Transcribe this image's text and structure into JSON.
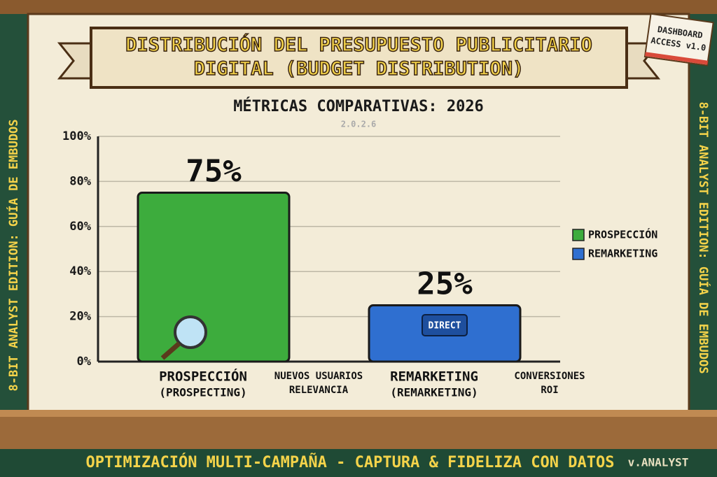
{
  "chart_data": {
    "type": "bar",
    "title": "DISTRIBUCIÓN DEL PRESUPUESTO PUBLICITARIO DIGITAL (BUDGET DISTRIBUTION)",
    "subtitle": "MÉTRICAS COMPARATIVAS: 2026",
    "categories": [
      "PROSPECCIÓN",
      "REMARKETING"
    ],
    "category_subtitles": [
      "(PROSPECTING)",
      "(REMARKETING)"
    ],
    "annotations": [
      [
        "NUEVOS USUARIOS",
        "RELEVANCIA"
      ],
      [
        "CONVERSIONES",
        "ROI"
      ]
    ],
    "series": [
      {
        "name": "PROSPECCIÓN",
        "color": "#3dac3d",
        "values": [
          75,
          null
        ],
        "value_labels": [
          "75%",
          null
        ]
      },
      {
        "name": "REMARKETING",
        "color": "#2f6fd0",
        "values": [
          null,
          25
        ],
        "value_labels": [
          null,
          "25%"
        ]
      }
    ],
    "ylim": [
      0,
      100
    ],
    "yticks": [
      {
        "value": 0,
        "label": "0%"
      },
      {
        "value": 20,
        "label": "20%"
      },
      {
        "value": 40,
        "label": "40%"
      },
      {
        "value": 60,
        "label": "60%"
      },
      {
        "value": 80,
        "label": "80%"
      },
      {
        "value": 100,
        "label": "100%"
      }
    ],
    "grid": true,
    "legend": "right"
  },
  "version_note": "2.0.2.6",
  "badge": [
    "DASHBOARD",
    "ACCESS v1.0"
  ],
  "side_text": "8-BIT ANALYST EDITION: GUÍA DE EMBUDOS",
  "button_text": "DIRECT",
  "footer": {
    "text": "OPTIMIZACIÓN MULTI-CAMPAÑA - CAPTURA & FIDELIZA CON DATOS",
    "version": "v.ANALYST"
  }
}
